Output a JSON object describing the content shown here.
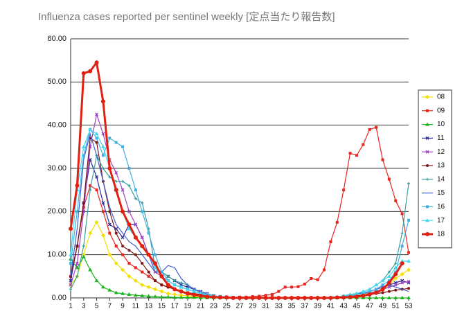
{
  "chart_data": {
    "type": "line",
    "title": "Influenza cases reported per sentinel weekly [定点当たり報告数]",
    "x": [
      1,
      2,
      3,
      4,
      5,
      6,
      7,
      8,
      9,
      10,
      11,
      12,
      13,
      14,
      15,
      16,
      17,
      18,
      19,
      20,
      21,
      22,
      23,
      24,
      25,
      26,
      27,
      28,
      29,
      30,
      31,
      32,
      33,
      34,
      35,
      36,
      37,
      38,
      39,
      40,
      41,
      42,
      43,
      44,
      45,
      46,
      47,
      48,
      49,
      50,
      51,
      52,
      53
    ],
    "xlim": [
      1,
      53
    ],
    "xticks": [
      1,
      3,
      5,
      7,
      9,
      11,
      13,
      15,
      17,
      19,
      21,
      23,
      25,
      27,
      29,
      31,
      33,
      35,
      37,
      39,
      41,
      43,
      45,
      47,
      49,
      51,
      53
    ],
    "ylim": [
      0,
      60
    ],
    "yticks": [
      {
        "value": 0,
        "label": "0.00"
      },
      {
        "value": 10,
        "label": "10.00"
      },
      {
        "value": 20,
        "label": "20.00"
      },
      {
        "value": 30,
        "label": "30.00"
      },
      {
        "value": 40,
        "label": "40.00"
      },
      {
        "value": 50,
        "label": "50.00"
      },
      {
        "value": 60,
        "label": "60.00"
      }
    ],
    "grid": true,
    "legend": "right",
    "series": [
      {
        "name": "08",
        "color": "#f2e000",
        "marker": "diamond",
        "values": [
          3,
          5,
          10,
          15,
          17.5,
          14.5,
          10,
          8,
          6.5,
          5,
          4,
          3,
          2.5,
          2,
          1.5,
          1,
          0.8,
          0.6,
          0.5,
          0.3,
          0.2,
          0.1,
          0.1,
          0,
          0,
          0,
          0,
          0,
          0,
          0,
          0,
          0,
          0,
          0,
          0,
          0,
          0,
          0,
          0,
          0,
          0,
          0.1,
          0.2,
          0.3,
          0.5,
          0.8,
          1,
          1.5,
          2,
          3,
          4.5,
          5.5,
          6.5
        ]
      },
      {
        "name": "09",
        "color": "#e8251f",
        "marker": "square",
        "values": [
          5,
          12,
          21,
          26,
          25,
          20,
          15,
          12,
          10,
          8,
          7,
          6,
          5,
          4,
          3,
          2.5,
          2,
          1.5,
          1.2,
          0.8,
          0.5,
          0.3,
          0.2,
          0.1,
          0.1,
          0.1,
          0.2,
          0.2,
          0.3,
          0.4,
          0.6,
          0.8,
          1.5,
          2.5,
          2.5,
          2.6,
          3.2,
          4.5,
          4.2,
          6.5,
          13,
          17.5,
          25,
          33.5,
          33,
          35.5,
          39,
          39.5,
          32,
          27.5,
          22.5,
          19.5,
          10.5
        ]
      },
      {
        "name": "10",
        "color": "#1db31d",
        "marker": "triangle",
        "values": [
          9,
          7,
          9.5,
          6.5,
          4,
          2.5,
          1.8,
          1.2,
          1,
          0.8,
          0.6,
          0.5,
          0.4,
          0.3,
          0.2,
          0.2,
          0.1,
          0.1,
          0.1,
          0.1,
          0,
          0,
          0,
          0,
          0,
          0,
          0,
          0,
          0,
          0,
          0,
          0,
          0,
          0,
          0,
          0,
          0,
          0,
          0,
          0,
          0,
          0,
          0,
          0,
          0,
          0,
          0,
          0,
          0,
          0,
          0,
          0,
          0
        ]
      },
      {
        "name": "11",
        "color": "#2b2b9a",
        "marker": "cross",
        "values": [
          4,
          12,
          22,
          32,
          28,
          22,
          17,
          16,
          14,
          17,
          17,
          14,
          10,
          6,
          6,
          5,
          4,
          3,
          2.5,
          2,
          1.5,
          1,
          0.5,
          0.3,
          0.2,
          0.1,
          0.1,
          0,
          0,
          0,
          0,
          0,
          0,
          0,
          0,
          0,
          0,
          0,
          0,
          0,
          0,
          0.1,
          0.3,
          0.5,
          0.8,
          1,
          1.5,
          2,
          2.5,
          3,
          3.5,
          4,
          3.5
        ]
      },
      {
        "name": "12",
        "color": "#a040c0",
        "marker": "cross",
        "values": [
          3,
          8,
          20,
          35,
          42.5,
          38,
          32,
          29,
          25,
          20,
          17,
          14,
          10,
          6,
          5,
          4,
          3,
          2.5,
          2,
          1.5,
          1,
          0.5,
          0.3,
          0.2,
          0.1,
          0,
          0,
          0,
          0,
          0,
          0,
          0,
          0,
          0,
          0,
          0,
          0,
          0,
          0,
          0,
          0,
          0.1,
          0.3,
          0.5,
          0.8,
          1,
          1.2,
          1.5,
          2,
          2.5,
          3,
          3.5,
          3.8
        ]
      },
      {
        "name": "13",
        "color": "#7a1515",
        "marker": "circle",
        "values": [
          5,
          12,
          22,
          37,
          36,
          27,
          20,
          15,
          12,
          11,
          10,
          8,
          6,
          4,
          3,
          2.5,
          2,
          1.5,
          1.2,
          1,
          0.8,
          0.5,
          0.3,
          0.2,
          0.1,
          0,
          0,
          0,
          0,
          0,
          0,
          0,
          0,
          0,
          0,
          0,
          0,
          0,
          0,
          0,
          0,
          0.1,
          0.2,
          0.3,
          0.5,
          0.6,
          0.8,
          1,
          1.2,
          1.5,
          1.8,
          2,
          2.2
        ]
      },
      {
        "name": "14",
        "color": "#3aa0a0",
        "marker": "plus",
        "values": [
          2,
          5,
          12,
          25,
          33,
          30,
          28,
          27,
          27,
          26,
          23,
          22,
          16,
          7,
          6,
          5,
          4,
          3.5,
          3,
          2,
          1.2,
          0.8,
          0.5,
          0.3,
          0.2,
          0.1,
          0,
          0,
          0,
          0,
          0,
          0,
          0,
          0,
          0,
          0,
          0,
          0,
          0,
          0,
          0,
          0.2,
          0.5,
          0.8,
          1,
          1.5,
          2,
          3,
          4,
          6,
          8,
          15,
          26.5
        ]
      },
      {
        "name": "15",
        "color": "#4060d0",
        "marker": "none",
        "values": [
          5,
          16,
          32,
          38,
          33,
          27,
          21,
          17,
          15,
          13,
          12,
          10,
          8,
          6,
          6,
          7.5,
          7,
          4.5,
          3,
          2,
          1.5,
          1,
          0.5,
          0.3,
          0.2,
          0.1,
          0,
          0,
          0,
          0,
          0,
          0,
          0,
          0,
          0,
          0,
          0,
          0,
          0,
          0,
          0,
          0.2,
          0.5,
          0.8,
          1,
          1.2,
          1.5,
          2,
          2.5,
          3,
          2.5,
          2,
          1.5
        ]
      },
      {
        "name": "16",
        "color": "#40b0e0",
        "marker": "square",
        "values": [
          8,
          20,
          33,
          39,
          37,
          33,
          37,
          36,
          35,
          30,
          25,
          20,
          15,
          10,
          6,
          4,
          3,
          2.5,
          2,
          1.5,
          1,
          0.5,
          0.3,
          0.2,
          0.1,
          0,
          0,
          0,
          0,
          0,
          0,
          0,
          0,
          0,
          0,
          0,
          0,
          0,
          0,
          0,
          0,
          0.1,
          0.3,
          0.5,
          0.8,
          1,
          1.5,
          2,
          3,
          4,
          6,
          12,
          18
        ]
      },
      {
        "name": "17",
        "color": "#40d8f0",
        "marker": "triangle",
        "values": [
          10,
          25,
          35,
          39,
          38,
          35,
          30,
          25,
          20,
          16,
          14,
          12,
          10,
          7,
          5,
          4,
          3,
          2.5,
          2,
          1.5,
          1,
          0.8,
          0.5,
          0.3,
          0.2,
          0.1,
          0,
          0,
          0,
          0,
          0,
          0,
          0,
          0,
          0,
          0,
          0,
          0,
          0,
          0,
          0,
          0.2,
          0.5,
          0.8,
          1,
          1.5,
          2,
          3,
          4,
          5,
          7,
          8.5,
          8.5
        ]
      },
      {
        "name": "18",
        "color": "#e02010",
        "marker": "circle",
        "width": 3,
        "values": [
          16,
          26,
          52,
          52.5,
          54.5,
          45.5,
          30,
          25,
          20,
          17,
          14,
          12,
          10,
          8,
          5,
          3,
          2,
          1.5,
          1,
          0.7,
          0.5,
          0.3,
          0.2,
          0.1,
          0.1,
          0,
          0,
          0,
          0,
          0,
          0,
          0,
          0,
          0,
          0,
          0,
          0,
          0,
          0,
          0,
          0,
          0.1,
          0.1,
          0.2,
          0.3,
          0.5,
          0.8,
          1.2,
          2,
          3.5,
          5.5,
          8,
          null
        ]
      }
    ]
  }
}
